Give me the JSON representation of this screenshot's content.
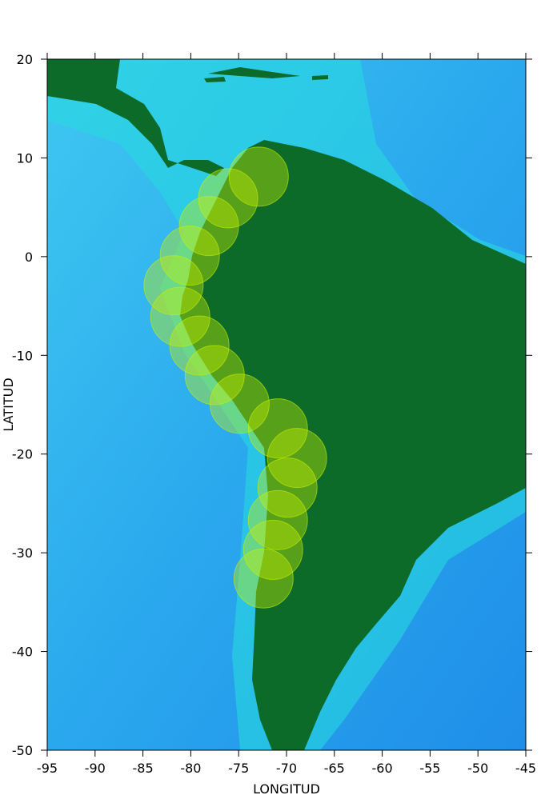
{
  "chart_data": {
    "type": "scatter",
    "xlabel": "LONGITUD",
    "ylabel": "LATITUD",
    "xlim": [
      -95,
      -45
    ],
    "ylim": [
      -50,
      20
    ],
    "xticks": [
      -95,
      -90,
      -85,
      -80,
      -75,
      -70,
      -65,
      -60,
      -55,
      -50,
      -45
    ],
    "yticks": [
      -50,
      -40,
      -30,
      -20,
      -10,
      0,
      10,
      20
    ],
    "color": "#c8f000",
    "x": [
      -72.9,
      -76.1,
      -78.1,
      -80.1,
      -81.8,
      -81.1,
      -79.1,
      -77.5,
      -74.9,
      -70.9,
      -68.9,
      -69.9,
      -70.9,
      -71.4,
      -72.4
    ],
    "y": [
      8.1,
      5.9,
      3.1,
      0.1,
      -2.9,
      -6.1,
      -9.0,
      -12.0,
      -14.9,
      -17.4,
      -20.4,
      -23.4,
      -26.7,
      -29.7,
      -32.6
    ]
  }
}
